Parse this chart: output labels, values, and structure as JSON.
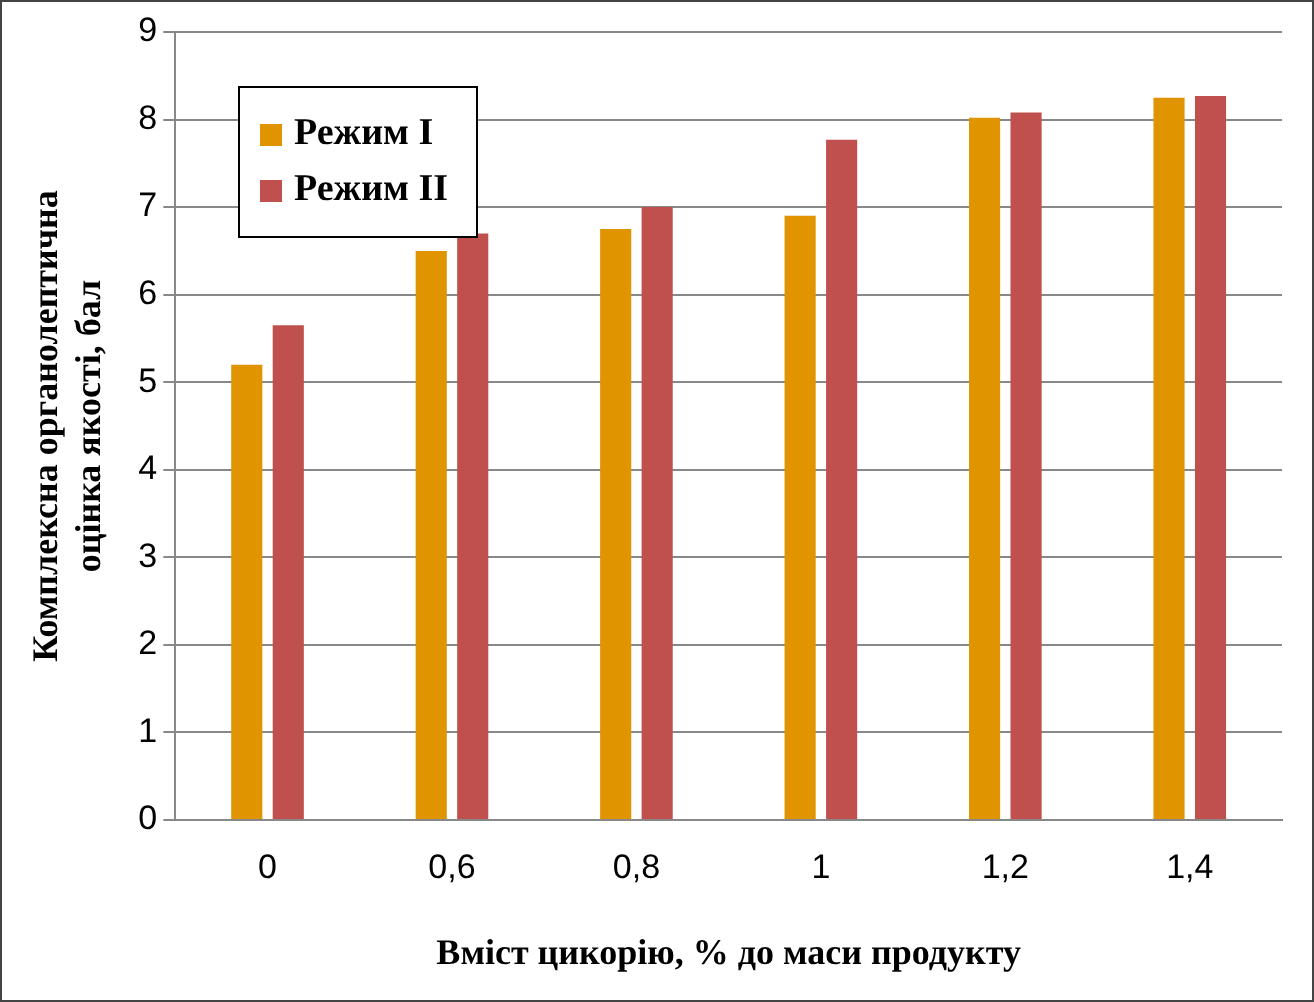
{
  "chart_data": {
    "type": "bar",
    "xlabel": "Вміст цикорію, % до маси продукту",
    "ylabel": "Комплексна органолептична оцінка якості, бал",
    "categories": [
      "0",
      "0,6",
      "0,8",
      "1",
      "1,2",
      "1,4"
    ],
    "series": [
      {
        "name": "Режим I",
        "color": "#e09400",
        "values": [
          5.2,
          6.5,
          6.75,
          6.9,
          8.02,
          8.25
        ]
      },
      {
        "name": "Режим II",
        "color": "#c0504d",
        "values": [
          5.65,
          6.7,
          7.0,
          7.77,
          8.08,
          8.27
        ]
      }
    ],
    "ylim": [
      0,
      9
    ],
    "yticks": [
      0,
      1,
      2,
      3,
      4,
      5,
      6,
      7,
      8,
      9
    ],
    "grid": "y",
    "legend": "top left"
  }
}
